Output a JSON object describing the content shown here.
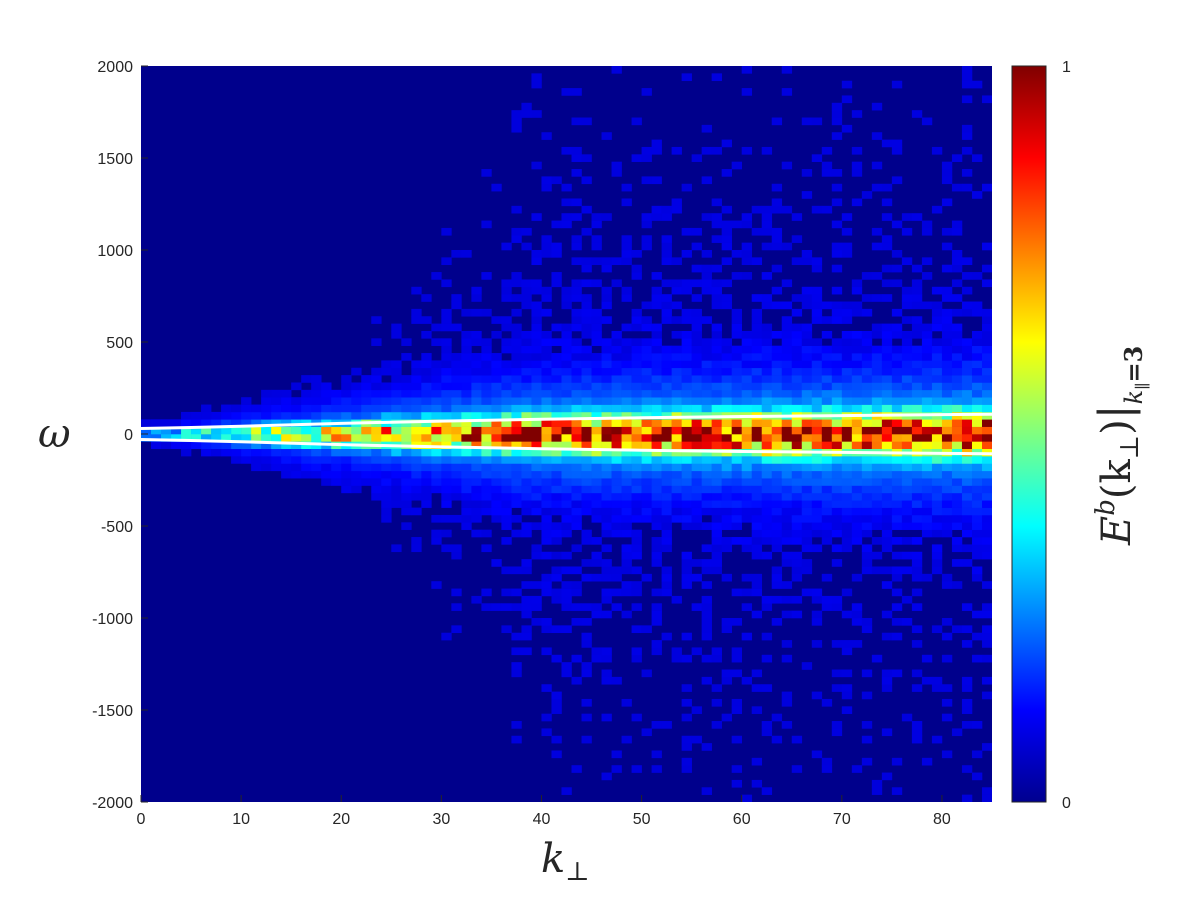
{
  "chart_data": {
    "type": "heatmap",
    "title": "",
    "xlabel": {
      "symbol": "k",
      "subscript": "⊥"
    },
    "ylabel": "ω",
    "x_range": [
      0,
      85
    ],
    "y_range": [
      -2000,
      2000
    ],
    "x_ticks": [
      0,
      10,
      20,
      30,
      40,
      50,
      60,
      70,
      80
    ],
    "y_ticks": [
      -2000,
      -1500,
      -1000,
      -500,
      0,
      500,
      1000,
      1500,
      2000
    ],
    "grid": false,
    "colormap": "jet",
    "colorbar": {
      "range": [
        0,
        1
      ],
      "ticks": [
        0,
        1
      ],
      "label": {
        "base": "E",
        "superscript": "b",
        "argument": "(k",
        "argument_subscript": "⊥",
        "argument_close": ")",
        "restriction": "k",
        "restriction_subscript": "∥",
        "restriction_value": "=3"
      }
    },
    "intensity_description": "energy concentrated in a band around ω = 0 that widens with k_⊥; background near 0",
    "band_halfwidth_samples": {
      "k_perp": [
        0,
        10,
        20,
        30,
        40,
        50,
        60,
        70,
        85
      ],
      "omega": [
        20,
        45,
        65,
        80,
        90,
        95,
        100,
        105,
        110
      ]
    },
    "curves": [
      {
        "color": "#ffffff",
        "k_perp": [
          0,
          5,
          10,
          20,
          30,
          40,
          50,
          60,
          70,
          80,
          85
        ],
        "omega": [
          30,
          35,
          42,
          58,
          70,
          80,
          88,
          95,
          100,
          105,
          107
        ]
      },
      {
        "color": "#ffffff",
        "k_perp": [
          0,
          5,
          10,
          20,
          30,
          40,
          50,
          60,
          70,
          80,
          85
        ],
        "omega": [
          -30,
          -35,
          -42,
          -58,
          -70,
          -80,
          -88,
          -95,
          -100,
          -105,
          -107
        ]
      }
    ]
  }
}
